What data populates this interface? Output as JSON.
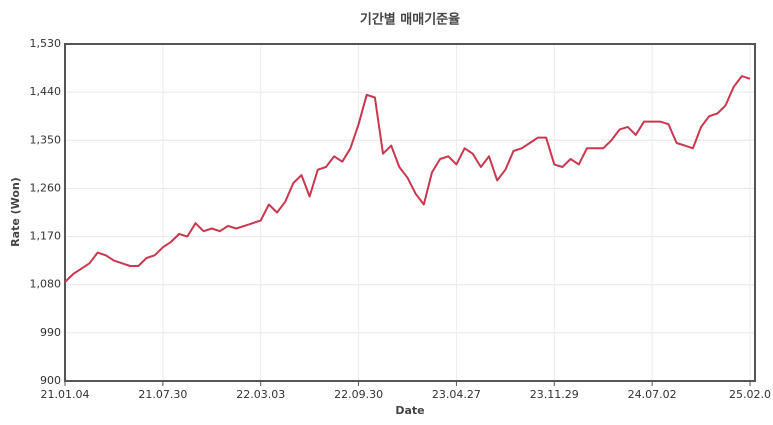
{
  "chart_data": {
    "type": "line",
    "title": "기간별 매매기준율",
    "x_label": "Date",
    "y_label": "Rate (Won)",
    "categories": [
      "21.01.04",
      null,
      null,
      null,
      null,
      null,
      null,
      null,
      null,
      null,
      null,
      null,
      "21.07.30",
      null,
      null,
      null,
      null,
      null,
      null,
      null,
      null,
      null,
      null,
      null,
      "22.03.03",
      null,
      null,
      null,
      null,
      null,
      null,
      null,
      null,
      null,
      null,
      null,
      "22.09.30",
      null,
      null,
      null,
      null,
      null,
      null,
      null,
      null,
      null,
      null,
      null,
      "23.04.27",
      null,
      null,
      null,
      null,
      null,
      null,
      null,
      null,
      null,
      null,
      null,
      "23.11.29",
      null,
      null,
      null,
      null,
      null,
      null,
      null,
      null,
      null,
      null,
      null,
      "24.07.02",
      null,
      null,
      null,
      null,
      null,
      null,
      null,
      null,
      null,
      null,
      null,
      "25.02.0"
    ],
    "series": [
      {
        "name": "매매기준율",
        "color": "#c8384f",
        "values": [
          1085,
          1100,
          1110,
          1120,
          1140,
          1135,
          1125,
          1120,
          1115,
          1115,
          1130,
          1135,
          1150,
          1160,
          1175,
          1170,
          1195,
          1180,
          1185,
          1180,
          1190,
          1185,
          1190,
          1195,
          1200,
          1230,
          1215,
          1235,
          1270,
          1285,
          1245,
          1295,
          1300,
          1320,
          1310,
          1335,
          1380,
          1435,
          1430,
          1325,
          1340,
          1300,
          1280,
          1250,
          1230,
          1290,
          1315,
          1320,
          1305,
          1335,
          1325,
          1300,
          1320,
          1275,
          1295,
          1330,
          1335,
          1345,
          1355,
          1355,
          1305,
          1300,
          1315,
          1305,
          1335,
          1335,
          1335,
          1350,
          1370,
          1375,
          1360,
          1385,
          1385,
          1385,
          1380,
          1345,
          1340,
          1335,
          1375,
          1395,
          1400,
          1415,
          1450,
          1470,
          1465
        ]
      }
    ],
    "ylim": [
      900,
      1530
    ],
    "yticks": [
      {
        "value": 900,
        "label": "900"
      },
      {
        "value": 990,
        "label": "990"
      },
      {
        "value": 1080,
        "label": "1,080"
      },
      {
        "value": 1170,
        "label": "1,170"
      },
      {
        "value": 1260,
        "label": "1,260"
      },
      {
        "value": 1350,
        "label": "1,350"
      },
      {
        "value": 1440,
        "label": "1,440"
      },
      {
        "value": 1530,
        "label": "1,530"
      }
    ],
    "grid": true
  }
}
